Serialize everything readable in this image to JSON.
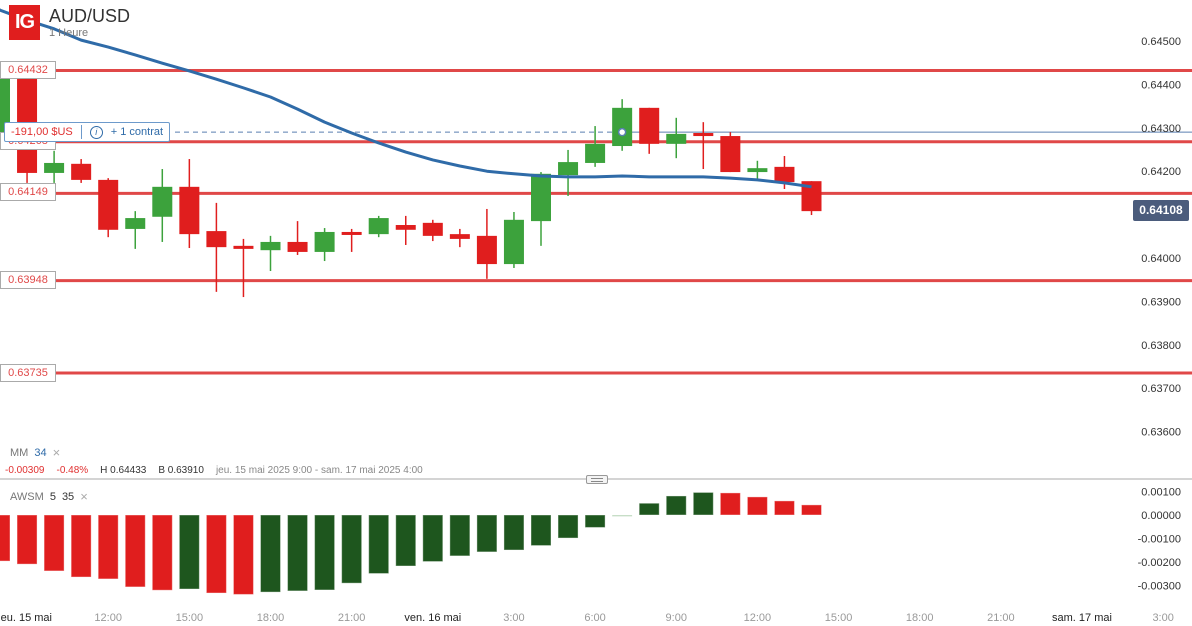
{
  "header": {
    "logo": "IG",
    "title": "AUD/USD",
    "timeframe": "1 Heure"
  },
  "levels": [
    {
      "label": "0.64432",
      "price": 0.64432
    },
    {
      "label": "0.64268",
      "price": 0.64268
    },
    {
      "label": "0.64149",
      "price": 0.64149
    },
    {
      "label": "0.63948",
      "price": 0.63948
    },
    {
      "label": "0.63735",
      "price": 0.63735
    }
  ],
  "high_marker_price": 0.64433,
  "position": {
    "pnl": "-191,00 $US",
    "info_icon": "info-icon",
    "contracts": "+ 1 contrat",
    "price": 0.6429
  },
  "current_price": {
    "label": "0.64108",
    "value": 0.64108
  },
  "ma_legend": {
    "name": "MM",
    "period": "34",
    "close_icon": "close-icon"
  },
  "stats": {
    "change": "-0.00309",
    "change_pct": "-0.48%",
    "high": "H 0.64433",
    "low": "B 0.63910",
    "range": "jeu. 15 mai 2025 9:00 - sam. 17 mai 2025 4:00"
  },
  "awsm_legend": {
    "name": "AWSM",
    "fast": "5",
    "slow": "35",
    "close_icon": "close-icon"
  },
  "colors": {
    "up": "#3ca23c",
    "down": "#e01e1e",
    "level": "#e04848",
    "ma": "#2f6ba8",
    "hist_up": "#1e561e",
    "hist_down": "#e01e1e",
    "hist_flat": "#b9d6b9"
  },
  "chart_data": [
    {
      "type": "candlestick",
      "title": "AUD/USD 1 Heure",
      "ylim": [
        0.6355,
        0.6455
      ],
      "y_ticks": [
        "0.64500",
        "0.64400",
        "0.64300",
        "0.64200",
        "0.64000",
        "0.63900",
        "0.63800",
        "0.63700",
        "0.63600"
      ],
      "y_tick_values": [
        0.645,
        0.644,
        0.643,
        0.642,
        0.64,
        0.639,
        0.638,
        0.637,
        0.636
      ],
      "x_ticks": [
        "jeu. 15 mai",
        "12:00",
        "15:00",
        "18:00",
        "21:00",
        "ven. 16 mai",
        "3:00",
        "6:00",
        "9:00",
        "12:00",
        "15:00",
        "18:00",
        "21:00",
        "sam. 17 mai",
        "3:00"
      ],
      "x_tick_hours": [
        9,
        12,
        15,
        18,
        21,
        24,
        27,
        30,
        33,
        36,
        39,
        42,
        45,
        48,
        51
      ],
      "first_candle_hour": 8,
      "candles_ohlc": [
        [
          0.64283,
          0.64422,
          0.64272,
          0.64415
        ],
        [
          0.64419,
          0.64433,
          0.64173,
          0.64196
        ],
        [
          0.64196,
          0.64247,
          0.64173,
          0.64219
        ],
        [
          0.64217,
          0.64228,
          0.64173,
          0.6418
        ],
        [
          0.6418,
          0.64184,
          0.64048,
          0.64065
        ],
        [
          0.64067,
          0.64108,
          0.64021,
          0.64092
        ],
        [
          0.64095,
          0.64205,
          0.64037,
          0.64164
        ],
        [
          0.64164,
          0.64228,
          0.64023,
          0.64055
        ],
        [
          0.64062,
          0.64127,
          0.63922,
          0.64025
        ],
        [
          0.64028,
          0.64044,
          0.6391,
          0.64021
        ],
        [
          0.64018,
          0.64051,
          0.6397,
          0.64037
        ],
        [
          0.64037,
          0.64085,
          0.64007,
          0.64014
        ],
        [
          0.64014,
          0.64069,
          0.63993,
          0.6406
        ],
        [
          0.6406,
          0.64067,
          0.64014,
          0.64058
        ],
        [
          0.64055,
          0.64097,
          0.64048,
          0.64092
        ],
        [
          0.64076,
          0.64097,
          0.6403,
          0.64065
        ],
        [
          0.64081,
          0.64088,
          0.64039,
          0.64051
        ],
        [
          0.64055,
          0.64067,
          0.64025,
          0.64044
        ],
        [
          0.64051,
          0.64113,
          0.63952,
          0.63986
        ],
        [
          0.63986,
          0.64106,
          0.63977,
          0.64088
        ],
        [
          0.64085,
          0.64198,
          0.64028,
          0.64194
        ],
        [
          0.64191,
          0.64249,
          0.64143,
          0.64221
        ],
        [
          0.64219,
          0.64304,
          0.6421,
          0.64263
        ],
        [
          0.64258,
          0.64366,
          0.64247,
          0.64346
        ],
        [
          0.64346,
          0.64346,
          0.6424,
          0.64263
        ],
        [
          0.64263,
          0.64323,
          0.6423,
          0.64286
        ],
        [
          0.64288,
          0.64313,
          0.64205,
          0.64281
        ],
        [
          0.64281,
          0.6429,
          0.64198,
          0.64198
        ],
        [
          0.64198,
          0.64224,
          0.6418,
          0.64207
        ],
        [
          0.6421,
          0.64235,
          0.64159,
          0.64175
        ],
        [
          0.64177,
          0.64177,
          0.64099,
          0.64108
        ]
      ],
      "ma34": [
        0.64571,
        0.64548,
        0.64528,
        0.64502,
        0.64486,
        0.64468,
        0.64449,
        0.64431,
        0.64412,
        0.64392,
        0.64371,
        0.64343,
        0.64313,
        0.64288,
        0.64265,
        0.64244,
        0.64226,
        0.64212,
        0.642,
        0.64194,
        0.64189,
        0.64187,
        0.64187,
        0.64189,
        0.64187,
        0.64187,
        0.64187,
        0.64184,
        0.6418,
        0.64173,
        0.64164
      ]
    },
    {
      "type": "bar",
      "title": "AWSM 5 35",
      "ylim": [
        -0.0035,
        0.0011
      ],
      "y_ticks": [
        "0.00100",
        "0.00000",
        "-0.00100",
        "-0.00200",
        "-0.00300"
      ],
      "y_tick_values": [
        0.001,
        0,
        -0.001,
        -0.002,
        -0.003
      ],
      "values": [
        -0.00196,
        -0.00209,
        -0.00238,
        -0.00264,
        -0.00272,
        -0.00306,
        -0.0032,
        -0.00315,
        -0.00332,
        -0.00338,
        -0.00328,
        -0.00323,
        -0.00319,
        -0.0029,
        -0.00249,
        -0.00217,
        -0.00198,
        -0.00174,
        -0.00157,
        -0.00149,
        -0.0013,
        -0.00098,
        -0.00053,
        -2e-05,
        0.0005,
        0.00081,
        0.00096,
        0.00094,
        0.00077,
        0.0006,
        0.00043
      ],
      "colors": [
        "down",
        "down",
        "down",
        "down",
        "down",
        "down",
        "down",
        "up",
        "down",
        "down",
        "up",
        "up",
        "up",
        "up",
        "up",
        "up",
        "up",
        "up",
        "up",
        "up",
        "up",
        "up",
        "up",
        "flat",
        "up",
        "up",
        "up",
        "down",
        "down",
        "down",
        "down"
      ]
    }
  ]
}
